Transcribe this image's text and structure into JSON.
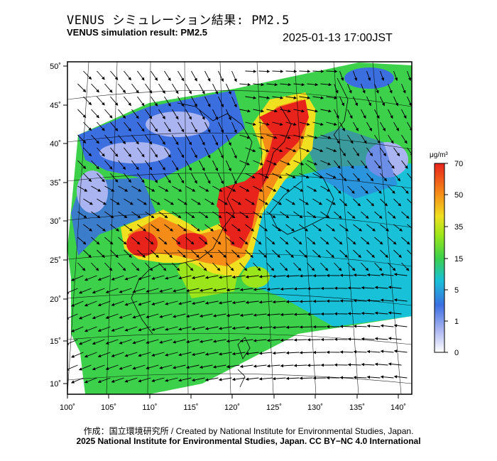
{
  "header": {
    "title_jp": "VENUS シミュレーション結果: PM2.5",
    "title_en": "VENUS simulation result: PM2.5",
    "timestamp": "2025-01-13 17:00JST"
  },
  "map": {
    "lon_ticks": [
      "100˚",
      "105˚",
      "110˚",
      "115˚",
      "120˚",
      "125˚",
      "130˚",
      "135˚",
      "140˚"
    ],
    "lat_ticks": [
      "50˚",
      "45˚",
      "40˚",
      "35˚",
      "30˚",
      "25˚",
      "20˚",
      "15˚",
      "10˚"
    ],
    "lon_range": [
      100,
      141
    ],
    "lat_range": [
      9,
      51
    ],
    "overlay": "wind-vector-arrows"
  },
  "colorbar": {
    "unit": "μg/m³",
    "tick_labels": [
      "70",
      "50",
      "35",
      "15",
      "5",
      "1",
      "0"
    ],
    "colors": [
      "#ffffff",
      "#a9b4f0",
      "#3b6fe0",
      "#18c0d8",
      "#3dd04a",
      "#9be61a",
      "#f0e020",
      "#f58c18",
      "#e8231c"
    ]
  },
  "footer": {
    "credit": "作成：国立環境研究所 / Created by National Institute for Environmental Studies, Japan.",
    "license": "2025 National Institute for Environmental Studies, Japan. CC BY−NC 4.0 International"
  }
}
